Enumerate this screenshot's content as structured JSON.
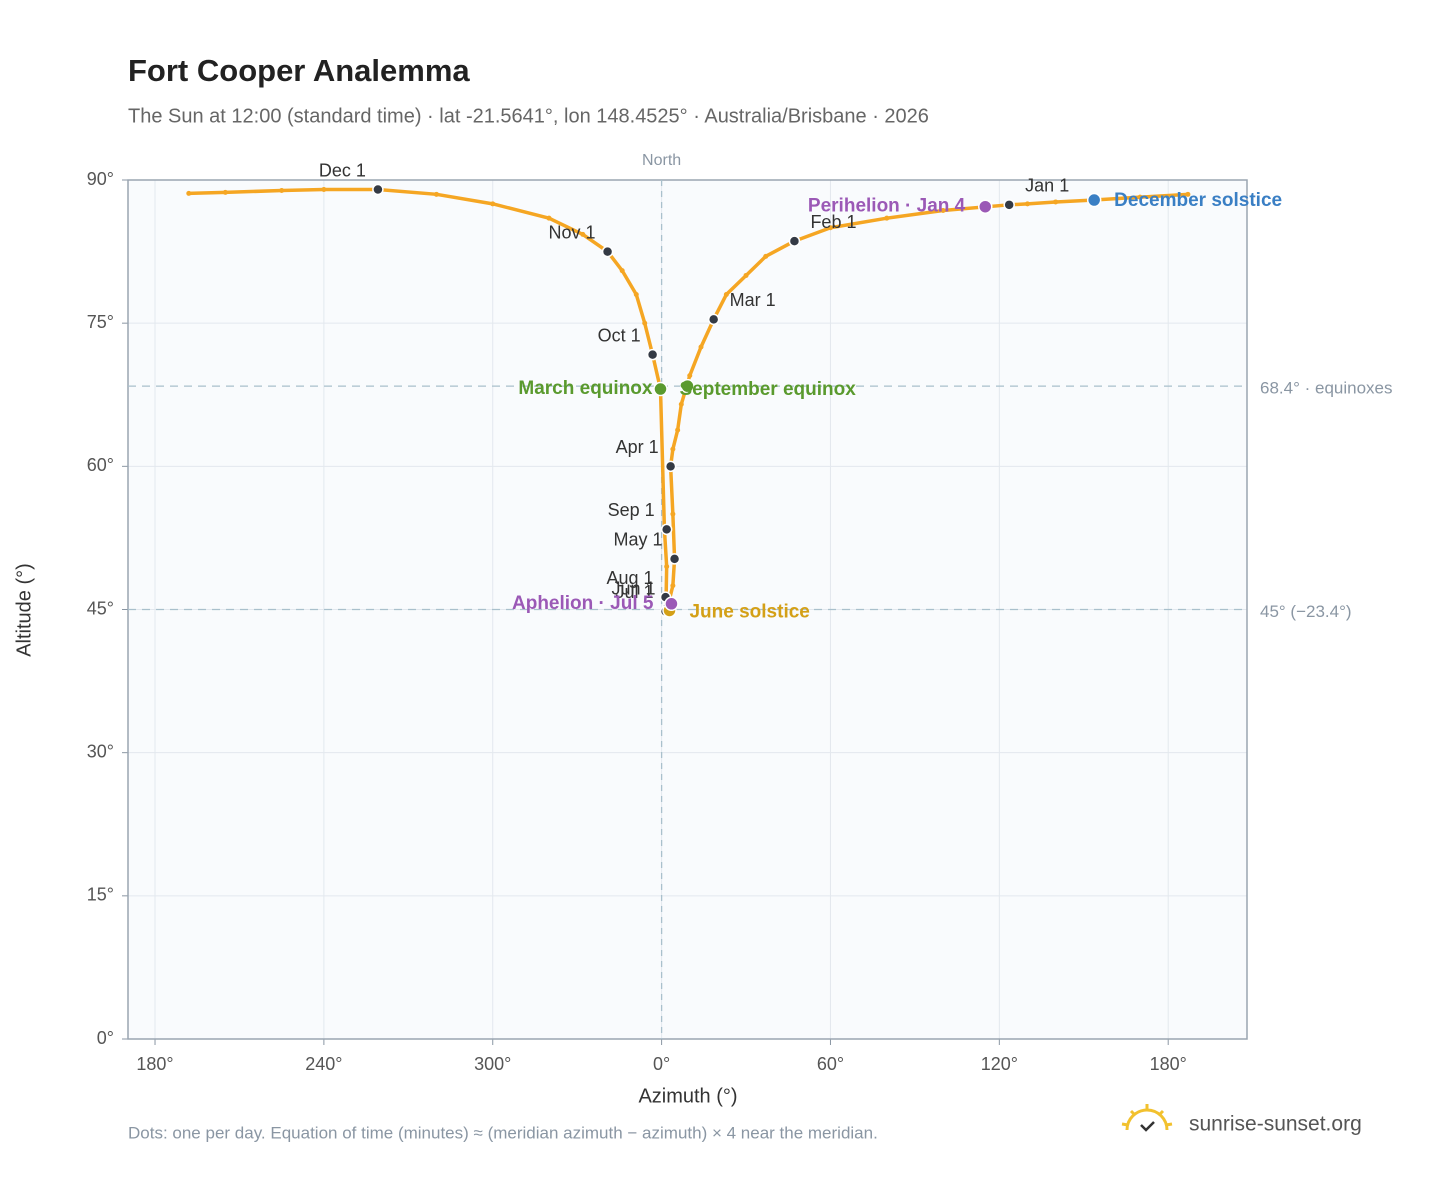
{
  "chart_data": {
    "type": "analemma",
    "title": "Fort Cooper Analemma",
    "subtitle": "The Sun at 12:00 (standard time) · lat -21.5641°, lon 148.4525° · Australia/Brisbane · 2026",
    "x_label": "Azimuth (°)",
    "y_label": "Altitude (°)",
    "xlim": [
      170.4,
      568
    ],
    "ylim": [
      0,
      90
    ],
    "xticks": [
      {
        "value": 180,
        "label": "180°"
      },
      {
        "value": 240,
        "label": "240°"
      },
      {
        "value": 300,
        "label": "300°"
      },
      {
        "value": 360,
        "label": "0°"
      },
      {
        "value": 420,
        "label": "60°"
      },
      {
        "value": 480,
        "label": "120°"
      },
      {
        "value": 540,
        "label": "180°"
      }
    ],
    "yticks": [
      {
        "value": 0,
        "label": "0°"
      },
      {
        "value": 15,
        "label": "15°"
      },
      {
        "value": 30,
        "label": "30°"
      },
      {
        "value": 45,
        "label": "45°"
      },
      {
        "value": 60,
        "label": "60°"
      },
      {
        "value": 75,
        "label": "75°"
      },
      {
        "value": 90,
        "label": "90°"
      }
    ],
    "grid": true,
    "series": [
      {
        "color": "#f5a623",
        "x": [
          483.5,
          460,
          440,
          420,
          407.2,
          397,
          390,
          383,
          378.5,
          374,
          370,
          367,
          365.7,
          364,
          363.2,
          364,
          364.6,
          364,
          362.1,
          361.4,
          361.4,
          361.6,
          361.8,
          361,
          359.6,
          356.8,
          354,
          351,
          346,
          340.8,
          332,
          320,
          300,
          280,
          259.2,
          240,
          225,
          205,
          192,
          null,
          547,
          530,
          513.7,
          500,
          490,
          483.5
        ],
        "y": [
          87.4,
          86.8,
          86,
          85,
          83.6,
          82,
          80,
          78,
          75.4,
          72.5,
          69.5,
          66.5,
          63.8,
          61.8,
          60,
          55,
          50.3,
          47.5,
          45.2,
          44.8,
          45.3,
          46.3,
          49.5,
          53.4,
          68.1,
          71.7,
          75,
          78,
          80.5,
          82.5,
          84.3,
          86,
          87.5,
          88.5,
          89,
          89,
          88.9,
          88.7,
          88.6,
          null,
          88.5,
          88.2,
          87.9,
          87.7,
          87.5,
          87.4
        ]
      }
    ],
    "reference_lines": [
      {
        "value": 68.4,
        "label": "68.4° · equinoxes"
      },
      {
        "value": 45,
        "label": "45° (−23.4°)"
      }
    ],
    "north": {
      "value": 360,
      "label": "North"
    },
    "months": [
      {
        "label": "Jan 1",
        "x": 483.5,
        "y": 87.4
      },
      {
        "label": "Feb 1",
        "x": 407.2,
        "y": 83.6
      },
      {
        "label": "Mar 1",
        "x": 378.5,
        "y": 75.4
      },
      {
        "label": "Apr 1",
        "x": 363.2,
        "y": 60.0
      },
      {
        "label": "May 1",
        "x": 364.6,
        "y": 50.3
      },
      {
        "label": "Jun 1",
        "x": 362.1,
        "y": 45.2
      },
      {
        "label": "Jul 1",
        "x": 361.4,
        "y": 44.8
      },
      {
        "label": "Aug 1",
        "x": 361.4,
        "y": 46.3
      },
      {
        "label": "Sep 1",
        "x": 361.8,
        "y": 53.4
      },
      {
        "label": "Oct 1",
        "x": 356.8,
        "y": 71.7
      },
      {
        "label": "Nov 1",
        "x": 340.8,
        "y": 82.5
      },
      {
        "label": "Dec 1",
        "x": 259.2,
        "y": 89.0
      }
    ],
    "events": [
      {
        "label": "March equinox",
        "x": 359.6,
        "y": 68.1,
        "color": "#5a9a2e"
      },
      {
        "label": "September equinox",
        "x": 369.2,
        "y": 68.4,
        "color": "#5a9a2e"
      },
      {
        "label": "June solstice",
        "x": 362.8,
        "y": 44.9,
        "color": "#d4a017"
      },
      {
        "label": "Aphelion · Jul 5",
        "x": 363.5,
        "y": 45.6,
        "color": "#9b59b6"
      },
      {
        "label": "Perihelion · Jan 4",
        "x": 475.0,
        "y": 87.2,
        "color": "#9b59b6"
      },
      {
        "label": "December solstice",
        "x": 513.7,
        "y": 87.9,
        "color": "#3a7fc4"
      }
    ],
    "footnote": "Dots: one per day. Equation of time (minutes) ≈ (meridian azimuth − azimuth) × 4 near the meridian.",
    "brand": "sunrise-sunset.org"
  }
}
